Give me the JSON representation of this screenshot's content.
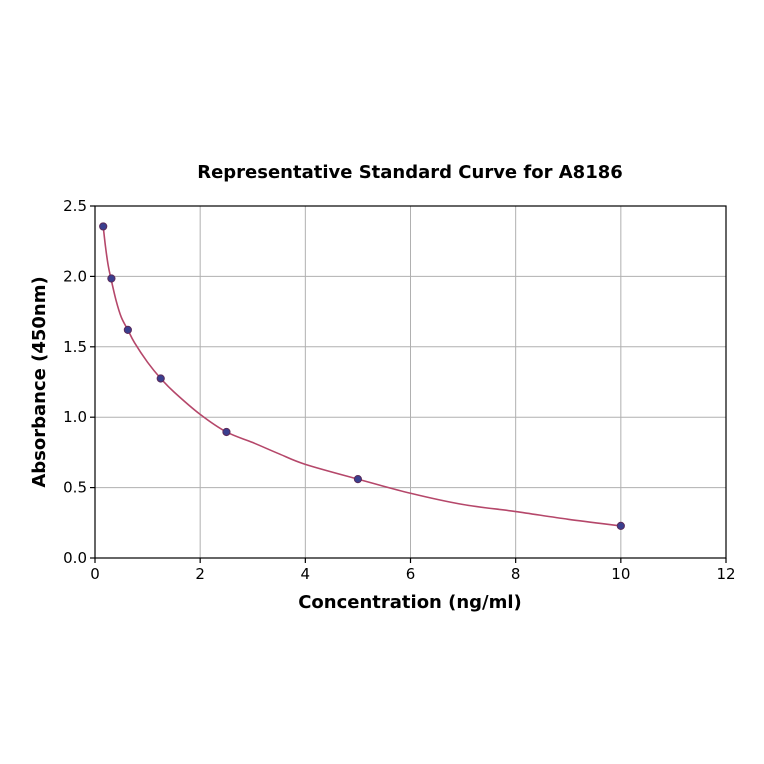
{
  "chart_data": {
    "type": "scatter",
    "title": "Representative Standard Curve for A8186",
    "xlabel": "Concentration (ng/ml)",
    "ylabel": "Absorbance (450nm)",
    "xlim": [
      0,
      12
    ],
    "ylim": [
      0,
      2.5
    ],
    "xticks": [
      0,
      2,
      4,
      6,
      8,
      10,
      12
    ],
    "xtick_labels": [
      "0",
      "2",
      "4",
      "6",
      "8",
      "10",
      "12"
    ],
    "yticks": [
      0,
      0.5,
      1.0,
      1.5,
      2.0,
      2.5
    ],
    "ytick_labels": [
      "0.0",
      "0.5",
      "1.0",
      "1.5",
      "2.0",
      "2.5"
    ],
    "grid": true,
    "series": [
      {
        "kind": "points",
        "x": [
          0.156,
          0.312,
          0.625,
          1.25,
          2.5,
          5,
          10
        ],
        "y": [
          2.355,
          1.985,
          1.62,
          1.275,
          0.895,
          0.56,
          0.228
        ]
      },
      {
        "kind": "fitted-curve",
        "x": [
          0.156,
          0.2,
          0.25,
          0.3,
          0.4,
          0.5,
          0.625,
          0.75,
          1.0,
          1.25,
          1.5,
          2.0,
          2.5,
          3.0,
          3.5,
          4.0,
          5.0,
          6.0,
          7.0,
          8.0,
          9.0,
          10.0
        ],
        "y": [
          2.355,
          2.21,
          2.08,
          1.99,
          1.83,
          1.71,
          1.62,
          1.53,
          1.39,
          1.275,
          1.18,
          1.02,
          0.895,
          0.82,
          0.74,
          0.665,
          0.56,
          0.46,
          0.38,
          0.33,
          0.275,
          0.228
        ]
      }
    ],
    "colors": {
      "curve": "#b5476a",
      "marker_fill": "#3a3f8f",
      "marker_edge": "#5a2a5a"
    }
  }
}
